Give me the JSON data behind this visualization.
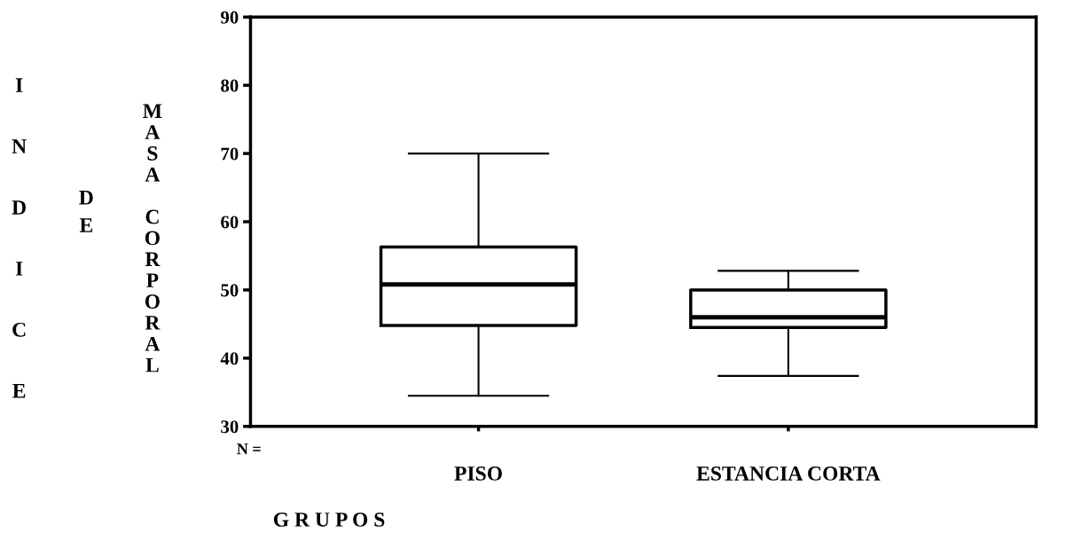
{
  "chart_data": {
    "type": "box",
    "xlabel": "G R U P O S",
    "ylabel": "INDICE DE MASA CORPORAL",
    "categories": [
      "PISO",
      "ESTANCIA CORTA"
    ],
    "boxes": [
      {
        "low": 34.5,
        "q1": 44.8,
        "median": 50.8,
        "q3": 56.3,
        "high": 70
      },
      {
        "low": 37.4,
        "q1": 44.5,
        "median": 46.0,
        "q3": 50.0,
        "high": 52.8
      }
    ],
    "ylim": [
      30,
      90
    ],
    "yticks": [
      30,
      40,
      50,
      60,
      70,
      80,
      90
    ],
    "annotations": [
      "N ="
    ],
    "grid": false,
    "legend": false
  }
}
